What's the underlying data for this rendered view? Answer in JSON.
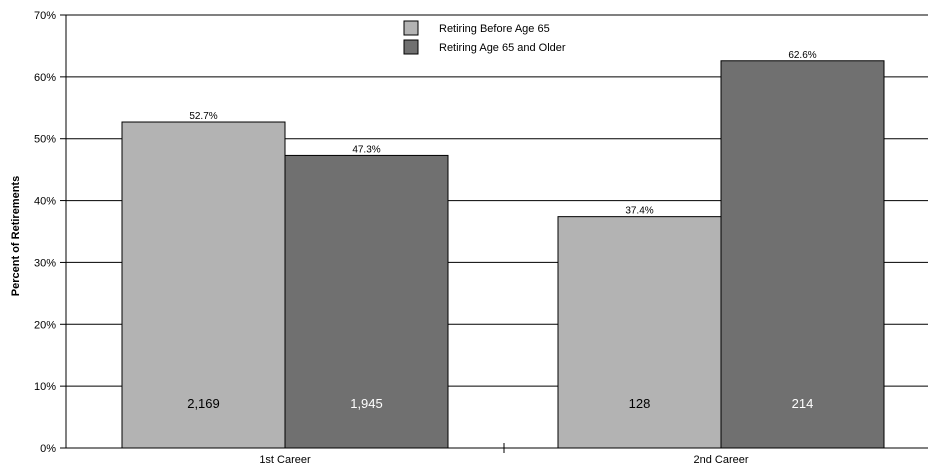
{
  "chart_data": {
    "type": "bar",
    "title": "",
    "xlabel": "",
    "ylabel": "Percent of Retirements",
    "categories": [
      "1st Career",
      "2nd Career"
    ],
    "series": [
      {
        "name": "Retiring Before Age 65",
        "color": "#b3b3b3",
        "values": [
          52.7,
          37.4
        ],
        "value_labels": [
          "52.7%",
          "37.4%"
        ],
        "counts": [
          "2,169",
          "128"
        ],
        "count_color": "#000000"
      },
      {
        "name": "Retiring Age 65 and Older",
        "color": "#707070",
        "values": [
          47.3,
          62.6
        ],
        "value_labels": [
          "47.3%",
          "62.6%"
        ],
        "counts": [
          "1,945",
          "214"
        ],
        "count_color": "#ffffff"
      }
    ],
    "ylim": [
      0,
      70
    ],
    "yticks": [
      0,
      10,
      20,
      30,
      40,
      50,
      60,
      70
    ],
    "ytick_labels": [
      "0%",
      "10%",
      "20%",
      "30%",
      "40%",
      "50%",
      "60%",
      "70%"
    ],
    "grid": true,
    "legend_position": "top-center"
  }
}
